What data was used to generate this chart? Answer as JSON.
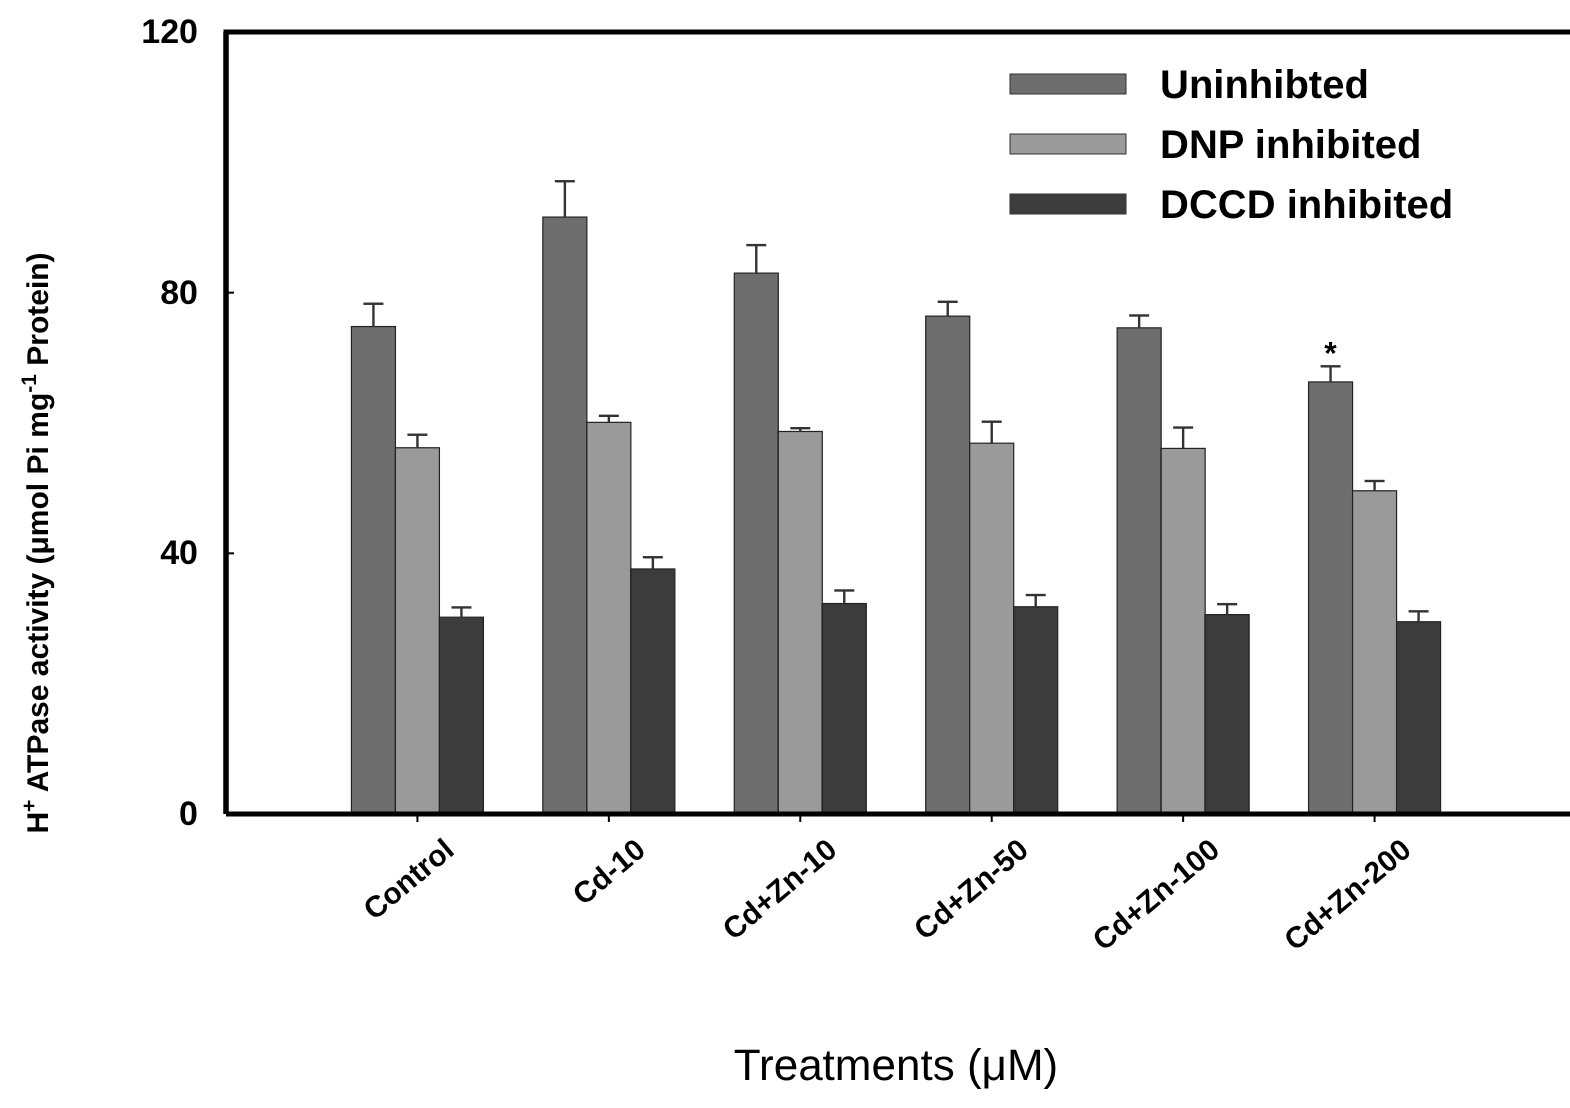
{
  "chart_data": {
    "type": "bar",
    "xlabel": "Treatments (μM)",
    "ylabel": "H$^{+}$ ATPase activity (μmol Pi mg$^{-1}$ Protein)",
    "categories": [
      "Control",
      "Cd-10",
      "Cd+Zn-10",
      "Cd+Zn-50",
      "Cd+Zn-100",
      "Cd+Zn-200"
    ],
    "series": [
      {
        "name": "Uninhibted",
        "color": "#6e6e6e",
        "values": [
          74.8,
          91.6,
          83,
          76.4,
          74.6,
          66.3
        ],
        "errors": [
          3.5,
          5.5,
          4.3,
          2.2,
          1.9,
          2.4
        ]
      },
      {
        "name": "DNP inhibited",
        "color": "#9a9a9a",
        "values": [
          56.2,
          60.1,
          58.7,
          56.9,
          56.1,
          49.6
        ],
        "errors": [
          2,
          1,
          0.5,
          3.3,
          3.2,
          1.5
        ]
      },
      {
        "name": "DCCD inhibited",
        "color": "#3c3c3c",
        "values": [
          30.2,
          37.6,
          32.3,
          31.8,
          30.6,
          29.5
        ],
        "errors": [
          1.5,
          1.8,
          2,
          1.8,
          1.6,
          1.6
        ]
      }
    ],
    "ylim": [
      0,
      120
    ],
    "yticks": [
      0,
      40,
      80,
      120
    ],
    "legend": "top right",
    "annotations": [
      "*"
    ]
  }
}
